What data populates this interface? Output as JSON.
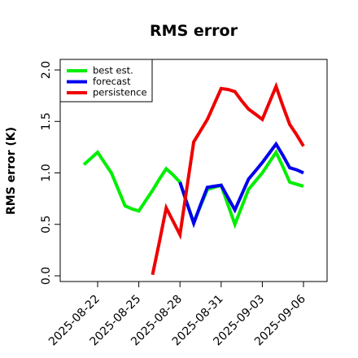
{
  "chart_data": {
    "type": "line",
    "title": "RMS error",
    "ylabel": "RMS error (K)",
    "xlabel": "",
    "ylim": [
      0.0,
      2.0
    ],
    "yticks": [
      "0.0",
      "0.5",
      "1.0",
      "1.5",
      "2.0"
    ],
    "xtick_labels": [
      "2025-08-22",
      "2025-08-25",
      "2025-08-28",
      "2025-08-31",
      "2025-09-03",
      "2025-09-06"
    ],
    "highlighted_xtick": "2025-08-28",
    "highlight_color": "#228B22",
    "legend_position": "top-left",
    "series": [
      {
        "name": "best est.",
        "color": "#00ee00",
        "x": [
          "2025-08-21",
          "2025-08-21 12:00",
          "2025-08-22",
          "2025-08-22 12:00",
          "2025-08-23",
          "2025-08-23 12:00",
          "2025-08-24",
          "2025-08-24 12:00",
          "2025-08-25",
          "2025-08-25 12:00",
          "2025-08-26",
          "2025-08-26 12:00",
          "2025-08-27",
          "2025-08-27 12:00",
          "2025-08-28",
          "2025-08-28 12:00",
          "2025-08-29",
          "2025-08-29 12:00",
          "2025-08-30",
          "2025-08-30 12:00",
          "2025-08-31",
          "2025-08-31 12:00",
          "2025-09-01",
          "2025-09-01 12:00",
          "2025-09-02",
          "2025-09-02 12:00",
          "2025-09-03",
          "2025-09-03 12:00",
          "2025-09-04",
          "2025-09-04 12:00",
          "2025-09-05",
          "2025-09-05 12:00",
          "2025-09-06"
        ],
        "values": [
          1.08,
          1.14,
          1.2,
          1.1,
          1.0,
          0.84,
          0.68,
          0.65,
          0.63,
          0.73,
          0.83,
          0.94,
          1.04,
          0.98,
          0.91,
          0.71,
          0.52,
          0.68,
          0.84,
          0.86,
          0.88,
          0.69,
          0.5,
          0.67,
          0.84,
          0.92,
          1.0,
          1.1,
          1.2,
          1.06,
          0.91,
          0.89,
          0.87
        ]
      },
      {
        "name": "forecast",
        "color": "#0000ee",
        "x": [
          "2025-08-28",
          "2025-08-28 12:00",
          "2025-08-29",
          "2025-08-29 12:00",
          "2025-08-30",
          "2025-08-30 12:00",
          "2025-08-31",
          "2025-08-31 12:00",
          "2025-09-01",
          "2025-09-01 12:00",
          "2025-09-02",
          "2025-09-02 12:00",
          "2025-09-03",
          "2025-09-03 12:00",
          "2025-09-04",
          "2025-09-04 12:00",
          "2025-09-05",
          "2025-09-05 12:00",
          "2025-09-06"
        ],
        "values": [
          0.91,
          0.71,
          0.51,
          0.69,
          0.86,
          0.87,
          0.88,
          0.76,
          0.64,
          0.79,
          0.94,
          1.02,
          1.1,
          1.19,
          1.28,
          1.17,
          1.05,
          1.03,
          1.0
        ]
      },
      {
        "name": "persistence",
        "color": "#ee0000",
        "x": [
          "2025-08-26",
          "2025-08-26 12:00",
          "2025-08-27",
          "2025-08-27 12:00",
          "2025-08-28",
          "2025-08-28 12:00",
          "2025-08-29",
          "2025-08-29 12:00",
          "2025-08-30",
          "2025-08-30 12:00",
          "2025-08-31",
          "2025-08-31 12:00",
          "2025-09-01",
          "2025-09-01 12:00",
          "2025-09-02",
          "2025-09-02 12:00",
          "2025-09-03",
          "2025-09-03 12:00",
          "2025-09-04",
          "2025-09-04 12:00",
          "2025-09-05",
          "2025-09-05 12:00",
          "2025-09-06"
        ],
        "values": [
          0.01,
          0.33,
          0.66,
          0.53,
          0.4,
          0.85,
          1.3,
          1.41,
          1.52,
          1.67,
          1.82,
          1.81,
          1.79,
          1.7,
          1.62,
          1.57,
          1.52,
          1.68,
          1.84,
          1.65,
          1.47,
          1.37,
          1.26
        ]
      }
    ]
  }
}
